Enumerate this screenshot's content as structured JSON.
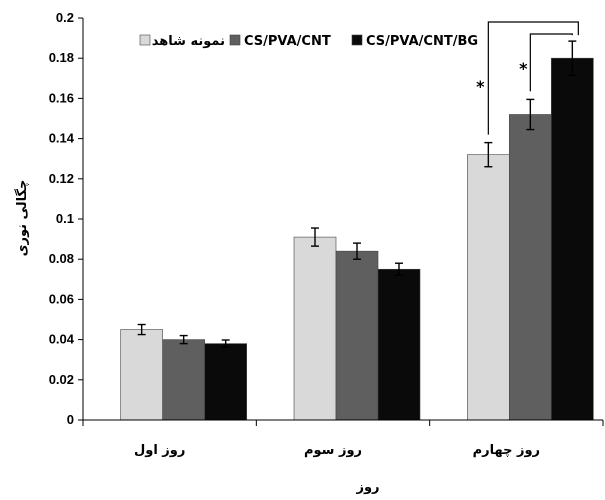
{
  "chart_data": {
    "type": "bar",
    "title": "",
    "xlabel": "روز",
    "ylabel": "چگالی نوری",
    "ylim": [
      0,
      0.2
    ],
    "yticks": [
      0,
      0.02,
      0.04,
      0.06,
      0.08,
      0.1,
      0.12,
      0.14,
      0.16,
      0.18,
      0.2
    ],
    "ytick_labels": [
      "0",
      "0.02",
      "0.04",
      "0.06",
      "0.08",
      "0.1",
      "0.12",
      "0.14",
      "0.16",
      "0.18",
      "0.2"
    ],
    "categories": [
      "روز اول",
      "روز سوم",
      "روز چهارم"
    ],
    "series": [
      {
        "name": "نمونه شاهد",
        "color": "#d9d9d9",
        "values": [
          0.045,
          0.091,
          0.132
        ],
        "errors": [
          0.0025,
          0.0045,
          0.006
        ]
      },
      {
        "name": "CS/PVA/CNT",
        "color": "#5f5f5f",
        "values": [
          0.04,
          0.084,
          0.152
        ],
        "errors": [
          0.002,
          0.004,
          0.0075
        ]
      },
      {
        "name": "CS/PVA/CNT/BG",
        "color": "#0a0a0a",
        "values": [
          0.038,
          0.075,
          0.18
        ],
        "errors": [
          0.0018,
          0.003,
          0.0085
        ]
      }
    ],
    "significance_marker": "*",
    "legend_position": "top",
    "grid": false
  }
}
